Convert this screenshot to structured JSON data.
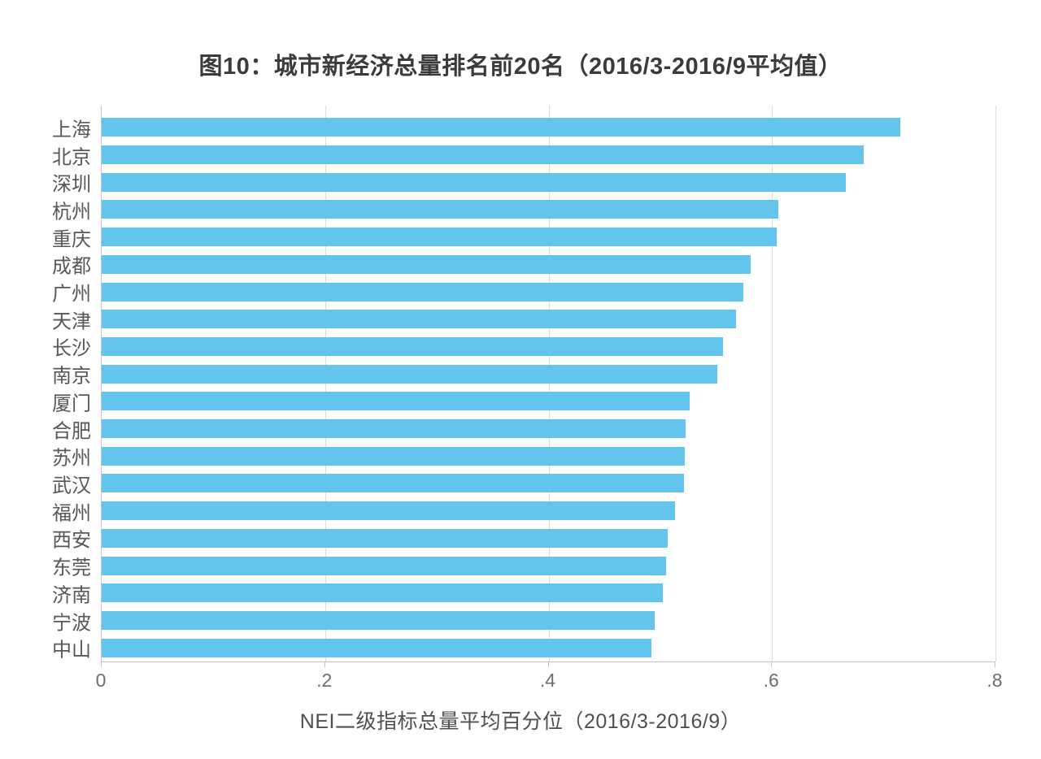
{
  "chart_data": {
    "type": "bar",
    "orientation": "horizontal",
    "title": "图10：城市新经济总量排名前20名（2016/3-2016/9平均值）",
    "xlabel": "NEI二级指标总量平均百分位（2016/3-2016/9）",
    "categories": [
      "上海",
      "北京",
      "深圳",
      "杭州",
      "重庆",
      "成都",
      "广州",
      "天津",
      "长沙",
      "南京",
      "厦门",
      "合肥",
      "苏州",
      "武汉",
      "福州",
      "西安",
      "东莞",
      "济南",
      "宁波",
      "中山"
    ],
    "values": [
      0.715,
      0.682,
      0.666,
      0.606,
      0.604,
      0.581,
      0.574,
      0.568,
      0.556,
      0.551,
      0.526,
      0.523,
      0.522,
      0.521,
      0.513,
      0.507,
      0.505,
      0.502,
      0.495,
      0.492
    ],
    "xlim": [
      0,
      0.8
    ],
    "xticks": [
      0,
      0.2,
      0.4,
      0.6,
      0.8
    ],
    "xtick_labels": [
      "0",
      ".2",
      ".4",
      ".6",
      ".8"
    ],
    "grid": "vertical gridlines at each x tick",
    "legend": "none"
  },
  "colors": {
    "bar": "#63c5ee",
    "axis_line": "#c4c4c4",
    "gridline": "#dcdcdc",
    "title_text": "#3b3b3b",
    "label_text": "#575757",
    "tick_text": "#6e6e6e"
  }
}
